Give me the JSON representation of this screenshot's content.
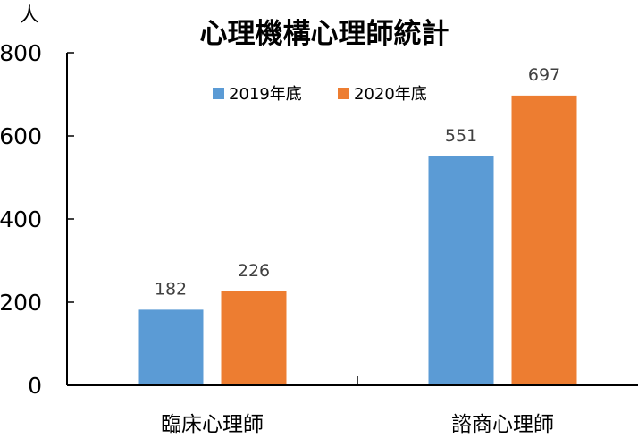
{
  "chart_data": {
    "type": "bar",
    "title": "心理機構心理師統計",
    "ylabel": "人",
    "xlabel": "",
    "categories": [
      "臨床心理師",
      "諮商心理師"
    ],
    "series": [
      {
        "name": "2019年底",
        "values": [
          182,
          551
        ],
        "color": "#5b9bd5"
      },
      {
        "name": "2020年底",
        "values": [
          226,
          697
        ],
        "color": "#ed7d31"
      }
    ],
    "ylim": [
      0,
      800
    ],
    "yticks": [
      0,
      200,
      400,
      600,
      800
    ],
    "grid": false,
    "legend": "top-center",
    "data_labels": true
  }
}
